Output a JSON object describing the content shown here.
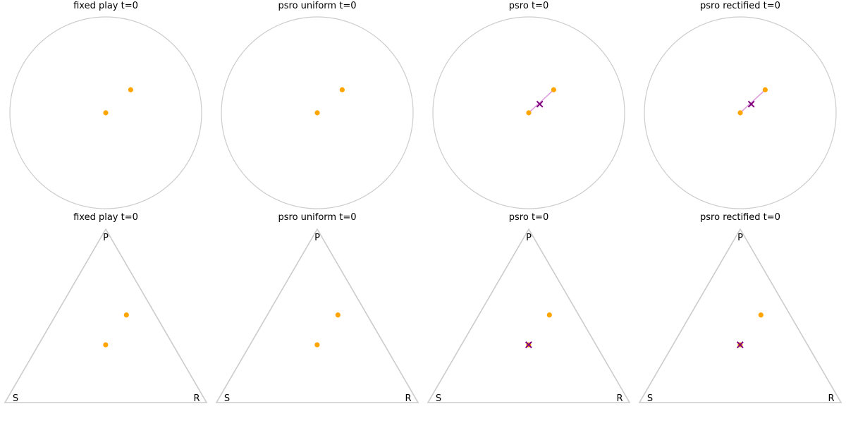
{
  "colors": {
    "outline": "#cccccc",
    "point": "#ffa500",
    "segment": "#dda0dd",
    "nash_marker": "#800080"
  },
  "icons": {
    "point": "filled-circle",
    "nash_marker": "x-cross"
  },
  "chart_data": [
    {
      "type": "scatter",
      "panel": "disc",
      "title": "fixed play t=0",
      "points": [
        {
          "x": 0.0,
          "y": 0.0
        },
        {
          "x": 0.26,
          "y": 0.24
        }
      ],
      "segment": false,
      "nash": null
    },
    {
      "type": "scatter",
      "panel": "disc",
      "title": "psro uniform t=0",
      "points": [
        {
          "x": 0.0,
          "y": 0.0
        },
        {
          "x": 0.26,
          "y": 0.24
        }
      ],
      "segment": false,
      "nash": null
    },
    {
      "type": "scatter",
      "panel": "disc",
      "title": "psro t=0",
      "points": [
        {
          "x": 0.0,
          "y": 0.0
        },
        {
          "x": 0.26,
          "y": 0.24
        }
      ],
      "segment": true,
      "nash": {
        "x": 0.115,
        "y": 0.09
      }
    },
    {
      "type": "scatter",
      "panel": "disc",
      "title": "psro rectified t=0",
      "points": [
        {
          "x": 0.0,
          "y": 0.0
        },
        {
          "x": 0.26,
          "y": 0.24
        }
      ],
      "segment": true,
      "nash": {
        "x": 0.115,
        "y": 0.09
      }
    },
    {
      "type": "scatter",
      "panel": "simplex",
      "title": "fixed play t=0",
      "vertices": {
        "top": "P",
        "left": "S",
        "right": "R"
      },
      "points": [
        {
          "R": 0.333,
          "P": 0.333,
          "S": 0.334
        },
        {
          "R": 0.35,
          "P": 0.505,
          "S": 0.145
        }
      ],
      "nash": null
    },
    {
      "type": "scatter",
      "panel": "simplex",
      "title": "psro uniform t=0",
      "vertices": {
        "top": "P",
        "left": "S",
        "right": "R"
      },
      "points": [
        {
          "R": 0.333,
          "P": 0.333,
          "S": 0.334
        },
        {
          "R": 0.35,
          "P": 0.505,
          "S": 0.145
        }
      ],
      "nash": null
    },
    {
      "type": "scatter",
      "panel": "simplex",
      "title": "psro t=0",
      "vertices": {
        "top": "P",
        "left": "S",
        "right": "R"
      },
      "points": [
        {
          "R": 0.333,
          "P": 0.333,
          "S": 0.334
        },
        {
          "R": 0.35,
          "P": 0.505,
          "S": 0.145
        }
      ],
      "nash": {
        "R": 0.333,
        "P": 0.333,
        "S": 0.334
      }
    },
    {
      "type": "scatter",
      "panel": "simplex",
      "title": "psro rectified t=0",
      "vertices": {
        "top": "P",
        "left": "S",
        "right": "R"
      },
      "points": [
        {
          "R": 0.333,
          "P": 0.333,
          "S": 0.334
        },
        {
          "R": 0.35,
          "P": 0.505,
          "S": 0.145
        }
      ],
      "nash": {
        "R": 0.333,
        "P": 0.333,
        "S": 0.334
      }
    }
  ]
}
